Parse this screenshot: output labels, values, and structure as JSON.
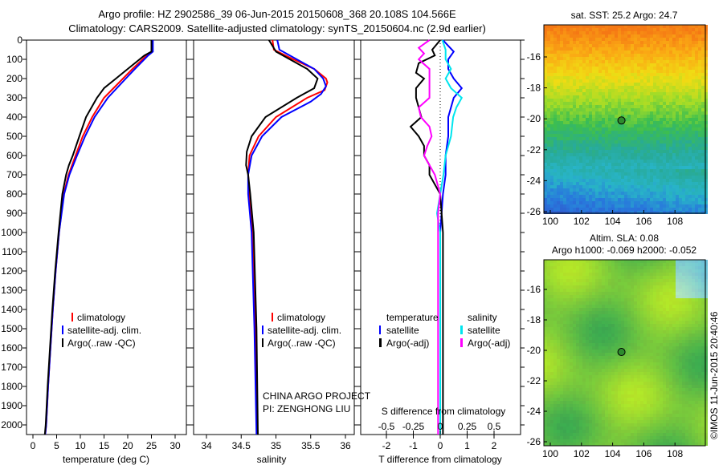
{
  "title_line1": "Argo profile: HZ 2902586_39 06-Jun-2015 20150608_368 20.108S 104.566E",
  "title_line2": "Climatology: CARS2009. Satellite-adjusted climatology: synTS_20150604.nc (2.9d earlier)",
  "colors": {
    "climatology": "#ff0000",
    "satellite": "#0000ff",
    "argo": "#000000",
    "sal_satellite": "#00e5ee",
    "sal_argo": "#ff00ff"
  },
  "chart_data": [
    {
      "type": "line",
      "name": "temperature",
      "xlabel": "temperature (deg C)",
      "ylabel": "",
      "xlim": [
        -2,
        31
      ],
      "ylim": [
        2050,
        0
      ],
      "xticks": [
        "0",
        "5",
        "10",
        "15",
        "20",
        "25",
        "30"
      ],
      "yticks": [
        "0",
        "100",
        "200",
        "300",
        "400",
        "500",
        "600",
        "700",
        "800",
        "900",
        "1000",
        "1100",
        "1200",
        "1300",
        "1400",
        "1500",
        "1600",
        "1700",
        "1800",
        "1900",
        "2000"
      ],
      "legend": [
        "climatology",
        "satellite-adj. clim.",
        "Argo(..raw -QC)"
      ],
      "series": [
        {
          "name": "climatology",
          "color_key": "climatology",
          "depth": [
            0,
            60,
            80,
            150,
            200,
            300,
            400,
            500,
            600,
            700,
            800,
            1000,
            1200,
            1400,
            1600,
            1800,
            2000,
            2050
          ],
          "values": [
            25.2,
            25.2,
            24,
            21,
            19,
            15,
            12.5,
            10.5,
            9,
            7.5,
            6.5,
            5.5,
            4.8,
            4.2,
            3.7,
            3.2,
            2.8,
            2.6
          ]
        },
        {
          "name": "satellite-adj. clim.",
          "color_key": "satellite",
          "depth": [
            0,
            60,
            80,
            150,
            200,
            300,
            400,
            500,
            600,
            700,
            800,
            1000,
            1200,
            1400,
            1600,
            1800,
            2000,
            2050
          ],
          "values": [
            25.3,
            25.3,
            24.3,
            21.5,
            19.6,
            15.8,
            13,
            11,
            9.3,
            7.7,
            6.6,
            5.5,
            4.8,
            4.2,
            3.7,
            3.2,
            2.8,
            2.6
          ]
        },
        {
          "name": "Argo(..raw -QC)",
          "color_key": "argo",
          "depth": [
            0,
            60,
            80,
            150,
            200,
            250,
            300,
            400,
            500,
            600,
            650,
            700,
            800,
            1000,
            1200,
            1400,
            1600,
            1800,
            2000,
            2050
          ],
          "values": [
            25,
            25,
            23.5,
            20,
            17.5,
            15,
            13.5,
            11.2,
            9.8,
            8.4,
            7.6,
            7,
            6.2,
            5.4,
            4.7,
            4.1,
            3.6,
            3.1,
            2.7,
            2.5
          ]
        }
      ]
    },
    {
      "type": "line",
      "name": "salinity",
      "xlabel": "salinity",
      "xlim": [
        33.72,
        36.05
      ],
      "ylim": [
        2050,
        0
      ],
      "xticks": [
        "34",
        "34.5",
        "35",
        "35.5",
        "36"
      ],
      "legend": [
        "climatology",
        "satellite-adj. clim.",
        "Argo(..raw -QC)"
      ],
      "annotation": [
        "CHINA ARGO PROJECT",
        "PI: ZENGHONG LIU"
      ],
      "series": [
        {
          "name": "climatology",
          "color_key": "climatology",
          "depth": [
            0,
            50,
            100,
            150,
            200,
            220,
            260,
            300,
            400,
            500,
            600,
            700,
            800,
            1000,
            1500,
            2050
          ],
          "values": [
            34.95,
            34.97,
            35.25,
            35.55,
            35.72,
            35.74,
            35.7,
            35.45,
            35.0,
            34.75,
            34.62,
            34.6,
            34.62,
            34.66,
            34.7,
            34.73
          ]
        },
        {
          "name": "satellite-adj. clim.",
          "color_key": "satellite",
          "depth": [
            0,
            50,
            100,
            150,
            200,
            240,
            280,
            320,
            400,
            500,
            600,
            700,
            800,
            1000,
            1500,
            2050
          ],
          "values": [
            35.02,
            35.05,
            35.3,
            35.55,
            35.68,
            35.72,
            35.65,
            35.5,
            35.08,
            34.8,
            34.65,
            34.6,
            34.6,
            34.65,
            34.69,
            34.72
          ]
        },
        {
          "name": "Argo(..raw -QC)",
          "color_key": "argo",
          "depth": [
            0,
            30,
            60,
            100,
            150,
            200,
            250,
            300,
            400,
            500,
            580,
            650,
            700,
            800,
            1000,
            1500,
            2050
          ],
          "values": [
            34.9,
            34.95,
            35.0,
            35.2,
            35.45,
            35.6,
            35.55,
            35.3,
            34.85,
            34.65,
            34.58,
            34.57,
            34.6,
            34.63,
            34.68,
            34.72,
            34.74
          ]
        }
      ]
    },
    {
      "type": "line",
      "name": "difference",
      "xlabel": "T difference from climatology",
      "xlabel_top": "S difference from climatology",
      "xlim": [
        -3,
        3
      ],
      "ylim": [
        2050,
        0
      ],
      "xticks": [
        "-2",
        "-1",
        "0",
        "1",
        "2"
      ],
      "xticks_top": [
        "-0.5",
        "-0.25",
        "0",
        "0.25",
        "0.5"
      ],
      "legend_temperature": {
        "title": "temperature",
        "items": [
          "satellite",
          "Argo(-adj)"
        ]
      },
      "legend_salinity": {
        "title": "salinity",
        "items": [
          "satellite",
          "Argo(-adj)"
        ]
      },
      "series": [
        {
          "name": "T satellite",
          "color_key": "satellite",
          "depth": [
            0,
            30,
            60,
            100,
            150,
            200,
            250,
            300,
            400,
            500,
            600,
            700,
            800,
            900,
            1000,
            1500,
            2050
          ],
          "values": [
            0.1,
            0.3,
            0.5,
            0.3,
            0.3,
            0.5,
            0.8,
            0.5,
            0.3,
            0.3,
            0.2,
            0.2,
            0.1,
            0.05,
            0,
            0,
            0
          ]
        },
        {
          "name": "T Argo(-adj)",
          "color_key": "argo",
          "depth": [
            0,
            50,
            80,
            120,
            170,
            200,
            250,
            300,
            400,
            450,
            500,
            550,
            600,
            650,
            700,
            750,
            800,
            900,
            1000,
            1500,
            2050
          ],
          "values": [
            0,
            -0.3,
            -0.2,
            -0.8,
            -0.9,
            -0.6,
            -0.9,
            -0.9,
            -0.7,
            -1.1,
            -0.8,
            -0.6,
            -0.6,
            -0.4,
            -0.4,
            -0.2,
            0,
            0.05,
            0.1,
            0.1,
            0.1
          ]
        },
        {
          "name": "S satellite",
          "color_key": "sal_satellite",
          "depth": [
            0,
            50,
            100,
            150,
            200,
            250,
            300,
            350,
            400,
            500,
            600,
            700,
            800,
            900,
            1000,
            1500,
            2050
          ],
          "values": [
            0.02,
            0.05,
            0.05,
            0.1,
            0.05,
            0.1,
            0.2,
            0.15,
            0.12,
            0.1,
            0.05,
            0.03,
            0,
            -0.03,
            0,
            0,
            0
          ]
        },
        {
          "name": "S Argo(-adj)",
          "color_key": "sal_argo",
          "depth": [
            0,
            40,
            70,
            100,
            150,
            200,
            300,
            350,
            400,
            450,
            500,
            550,
            600,
            700,
            800,
            900,
            1000,
            1500,
            2050
          ],
          "values": [
            -0.1,
            -0.2,
            -0.15,
            -0.2,
            -0.1,
            -0.1,
            -0.1,
            -0.2,
            -0.18,
            -0.1,
            -0.08,
            -0.12,
            -0.15,
            -0.05,
            0,
            -0.02,
            -0.02,
            -0.02,
            -0.02
          ]
        }
      ]
    },
    {
      "type": "heatmap",
      "name": "sst-map",
      "title": "sat. SST: 25.2  Argo: 24.7",
      "xlim": [
        99.5,
        110
      ],
      "ylim": [
        -26.2,
        -14
      ],
      "xticks": [
        "100",
        "102",
        "104",
        "106",
        "108"
      ],
      "yticks": [
        "-16",
        "-18",
        "-20",
        "-22",
        "-24",
        "-26"
      ],
      "marker": {
        "lon": 104.566,
        "lat": -20.108
      }
    },
    {
      "type": "heatmap",
      "name": "sla-map",
      "title_line1": "Altim. SLA: 0.08",
      "title_line2": "Argo h1000: -0.069 h2000: -0.052",
      "xlim": [
        99.5,
        110
      ],
      "ylim": [
        -26.2,
        -14.2
      ],
      "xticks": [
        "100",
        "102",
        "104",
        "106",
        "108"
      ],
      "yticks": [
        "-16",
        "-18",
        "-20",
        "-22",
        "-24",
        "-26"
      ],
      "marker": {
        "lon": 104.566,
        "lat": -20.108
      }
    }
  ],
  "credit": "©IMOS 11-Jun-2015 20:40:46"
}
